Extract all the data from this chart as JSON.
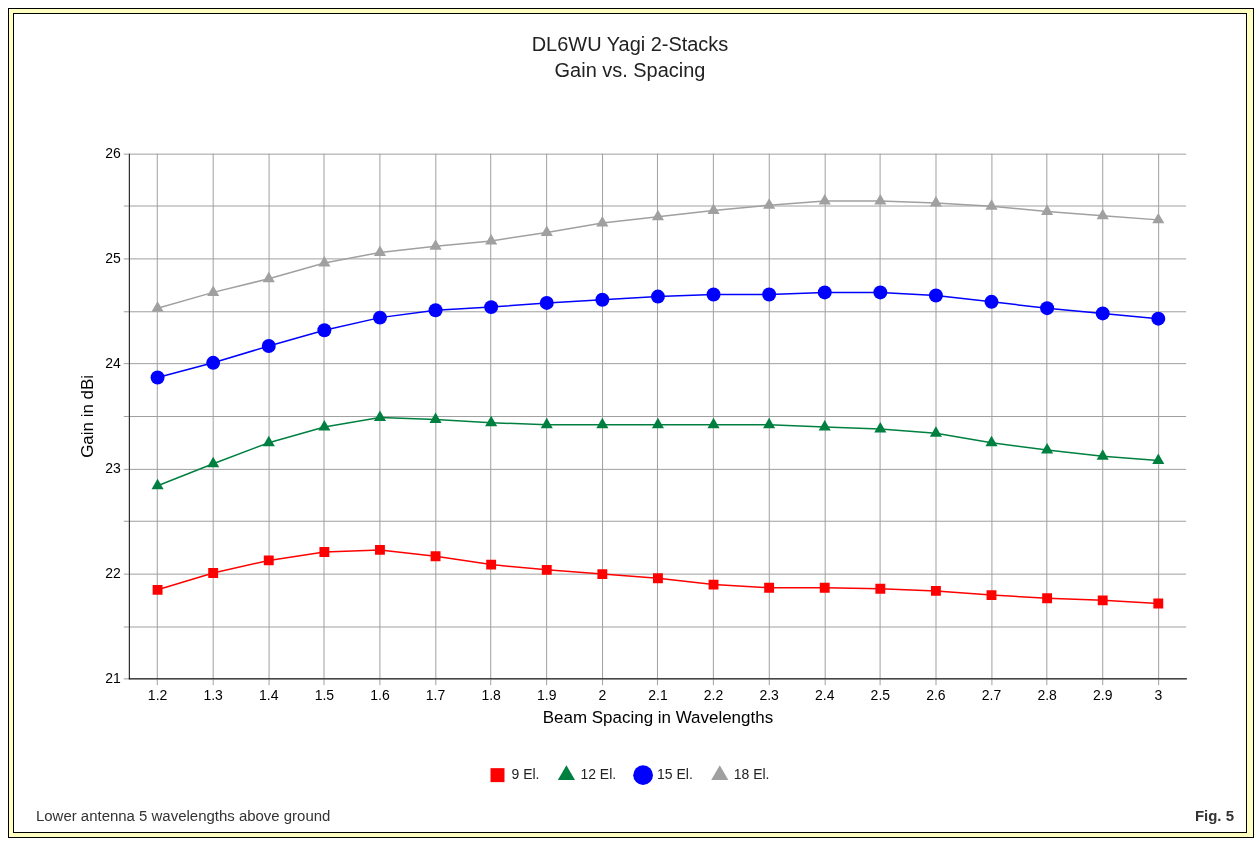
{
  "chart_data": {
    "type": "line",
    "title": "DL6WU Yagi 2-Stacks",
    "subtitle": "Gain vs. Spacing",
    "xlabel": "Beam Spacing in Wavelengths",
    "ylabel": "Gain in dBi",
    "categories": [
      "1.2",
      "1.3",
      "1.4",
      "1.5",
      "1.6",
      "1.7",
      "1.8",
      "1.9",
      "2",
      "2.1",
      "2.2",
      "2.3",
      "2.4",
      "2.5",
      "2.6",
      "2.7",
      "2.8",
      "2.9",
      "3"
    ],
    "series": [
      {
        "name": "9 El.",
        "color": "#ff0000",
        "marker": "square",
        "values": [
          21.85,
          22.01,
          22.13,
          22.21,
          22.23,
          22.17,
          22.09,
          22.04,
          22.0,
          21.96,
          21.9,
          21.87,
          21.87,
          21.86,
          21.84,
          21.8,
          21.77,
          21.75,
          21.72
        ]
      },
      {
        "name": "12 El.",
        "color": "#008040",
        "marker": "triangle",
        "values": [
          22.84,
          23.05,
          23.25,
          23.4,
          23.49,
          23.47,
          23.44,
          23.42,
          23.42,
          23.42,
          23.42,
          23.42,
          23.4,
          23.38,
          23.34,
          23.25,
          23.18,
          23.12,
          23.08
        ]
      },
      {
        "name": "15 El.",
        "color": "#0000ff",
        "marker": "circle",
        "values": [
          23.87,
          24.01,
          24.17,
          24.32,
          24.44,
          24.51,
          24.54,
          24.58,
          24.61,
          24.64,
          24.66,
          24.66,
          24.68,
          24.68,
          24.65,
          24.59,
          24.53,
          24.48,
          24.43
        ]
      },
      {
        "name": "18 El.",
        "color": "#a0a0a0",
        "marker": "triangle",
        "values": [
          24.53,
          24.68,
          24.81,
          24.96,
          25.06,
          25.12,
          25.17,
          25.25,
          25.34,
          25.4,
          25.46,
          25.51,
          25.55,
          25.55,
          25.53,
          25.5,
          25.45,
          25.41,
          25.37
        ]
      }
    ],
    "ylim": [
      21,
      26
    ],
    "yticks": [
      21,
      {
        "value": 21.5,
        "label": null
      },
      22,
      {
        "value": 22.5,
        "label": null
      },
      23,
      {
        "value": 23.5,
        "label": null
      },
      24,
      {
        "value": 24.5,
        "label": null
      },
      25,
      {
        "value": 25.5,
        "label": null
      },
      26
    ],
    "grid": true,
    "legend": "bottom",
    "line_style": "solid",
    "annotations": [
      "Lower antenna 5 wavelengths above ground",
      "Fig. 5"
    ]
  }
}
